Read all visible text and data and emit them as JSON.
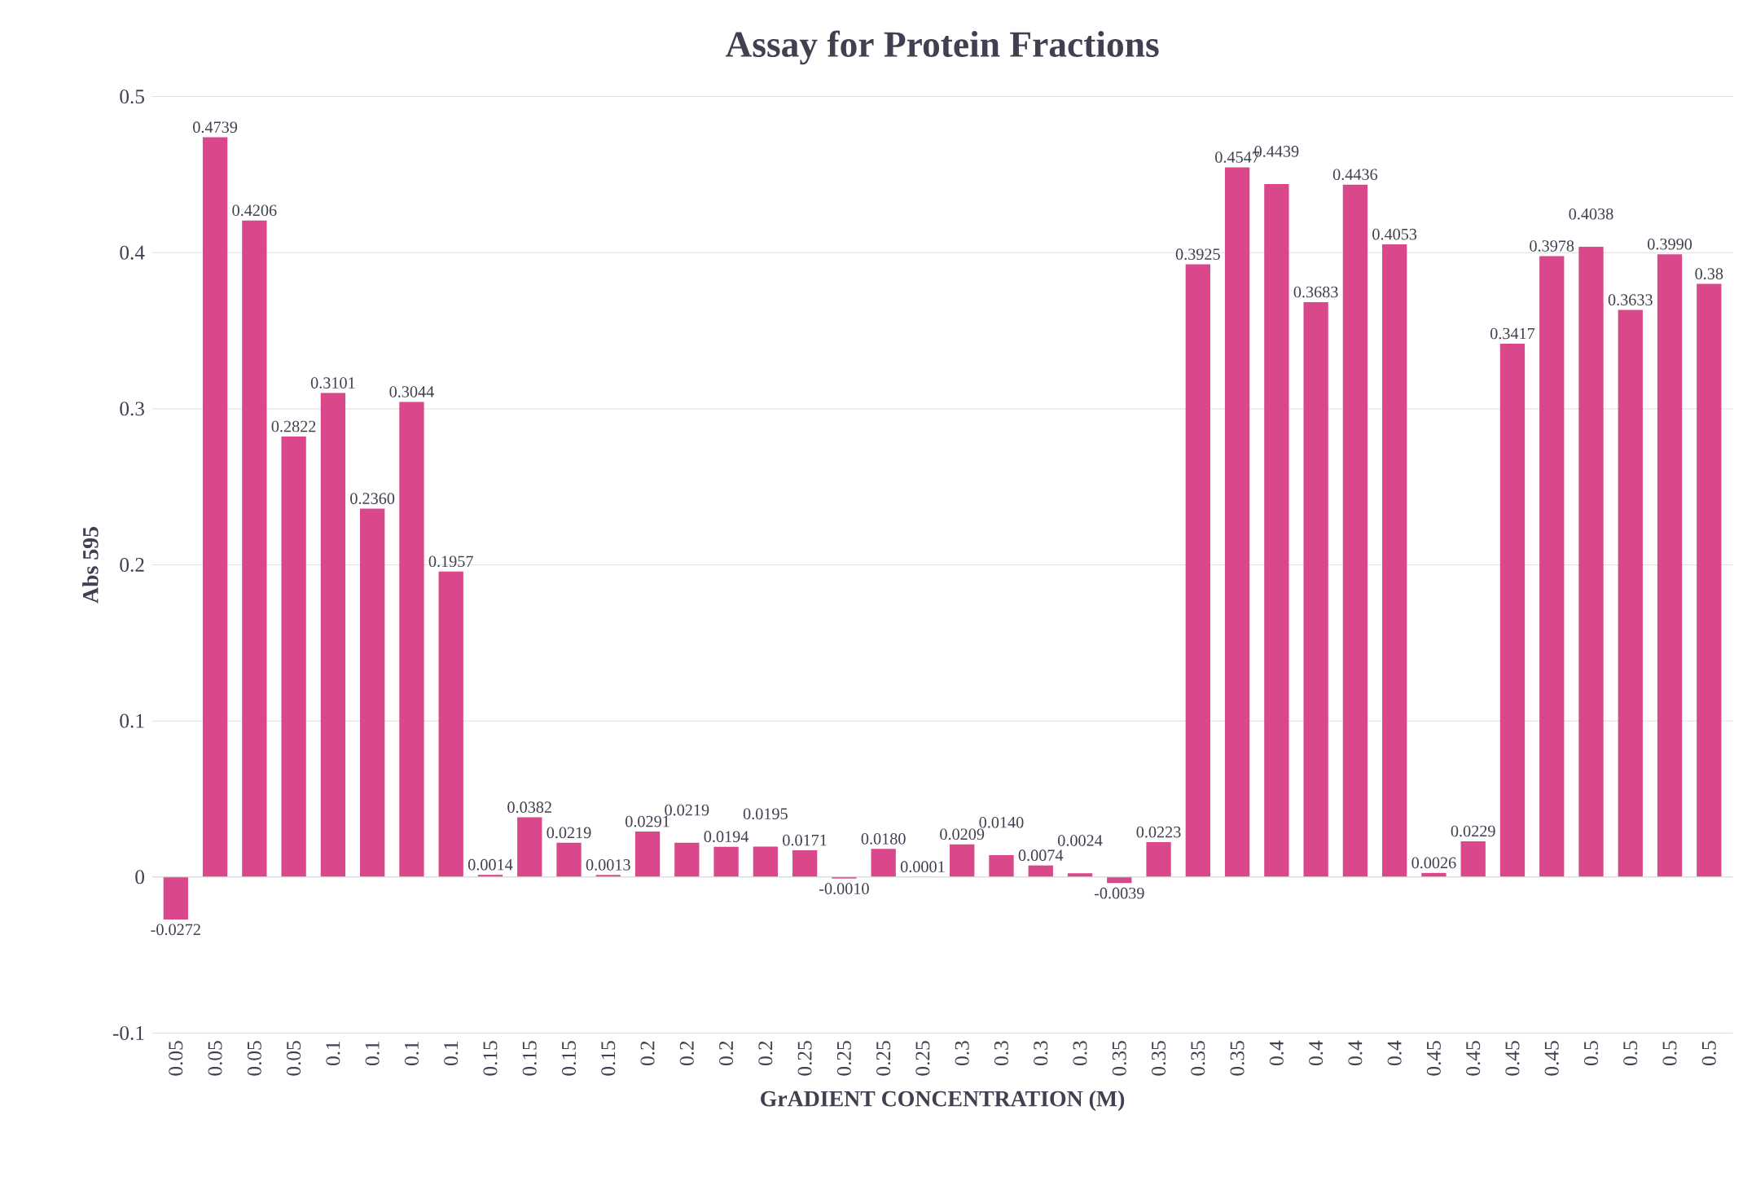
{
  "chart_data": {
    "type": "bar",
    "title": "Assay for Protein Fractions",
    "xlabel": "GrADIENT CONCENTRATION (M)",
    "ylabel": "Abs 595",
    "categories": [
      "0.05",
      "0.05",
      "0.05",
      "0.05",
      "0.1",
      "0.1",
      "0.1",
      "0.1",
      "0.15",
      "0.15",
      "0.15",
      "0.15",
      "0.2",
      "0.2",
      "0.2",
      "0.2",
      "0.25",
      "0.25",
      "0.25",
      "0.25",
      "0.3",
      "0.3",
      "0.3",
      "0.3",
      "0.35",
      "0.35",
      "0.35",
      "0.35",
      "0.4",
      "0.4",
      "0.4",
      "0.4",
      "0.45",
      "0.45",
      "0.45",
      "0.45",
      "0.5",
      "0.5",
      "0.5",
      "0.5"
    ],
    "values": [
      -0.0272,
      0.4739,
      0.4206,
      0.2822,
      0.3101,
      0.236,
      0.3044,
      0.1957,
      0.0014,
      0.0382,
      0.0219,
      0.0013,
      0.0291,
      0.0219,
      0.0194,
      0.0195,
      0.0171,
      -0.001,
      0.018,
      0.0001,
      0.0209,
      0.014,
      0.0074,
      0.0024,
      -0.0039,
      0.0223,
      0.3925,
      0.4547,
      0.4439,
      0.3683,
      0.4436,
      0.4053,
      0.0026,
      0.0229,
      0.3417,
      0.3978,
      0.4038,
      0.3633,
      0.399,
      0.38
    ],
    "value_labels": [
      "-0.0272",
      "0.4739",
      "0.4206",
      "0.2822",
      "0.3101",
      "0.2360",
      "0.3044",
      "0.1957",
      "0.0014",
      "0.0382",
      "0.0219",
      "0.0013",
      "0.0291",
      "0.0219",
      "0.0194",
      "0.0195",
      "0.0171",
      "-0.0010",
      "0.0180",
      "0.0001",
      "0.0209",
      "0.0140",
      "0.0074",
      "0.0024",
      "-0.0039",
      "0.0223",
      "0.3925",
      "0.4547",
      "0.4439",
      "0.3683",
      "0.4436",
      "0.4053",
      "0.0026",
      "0.0229",
      "0.3417",
      "0.3978",
      "0.4038",
      "0.3633",
      "0.3990",
      "0.38"
    ],
    "color": "#d9488a",
    "ylim": [
      -0.1,
      0.5
    ],
    "yticks": [
      -0.1,
      0,
      0.1,
      0.2,
      0.3,
      0.4,
      0.5
    ],
    "grid": "y"
  }
}
